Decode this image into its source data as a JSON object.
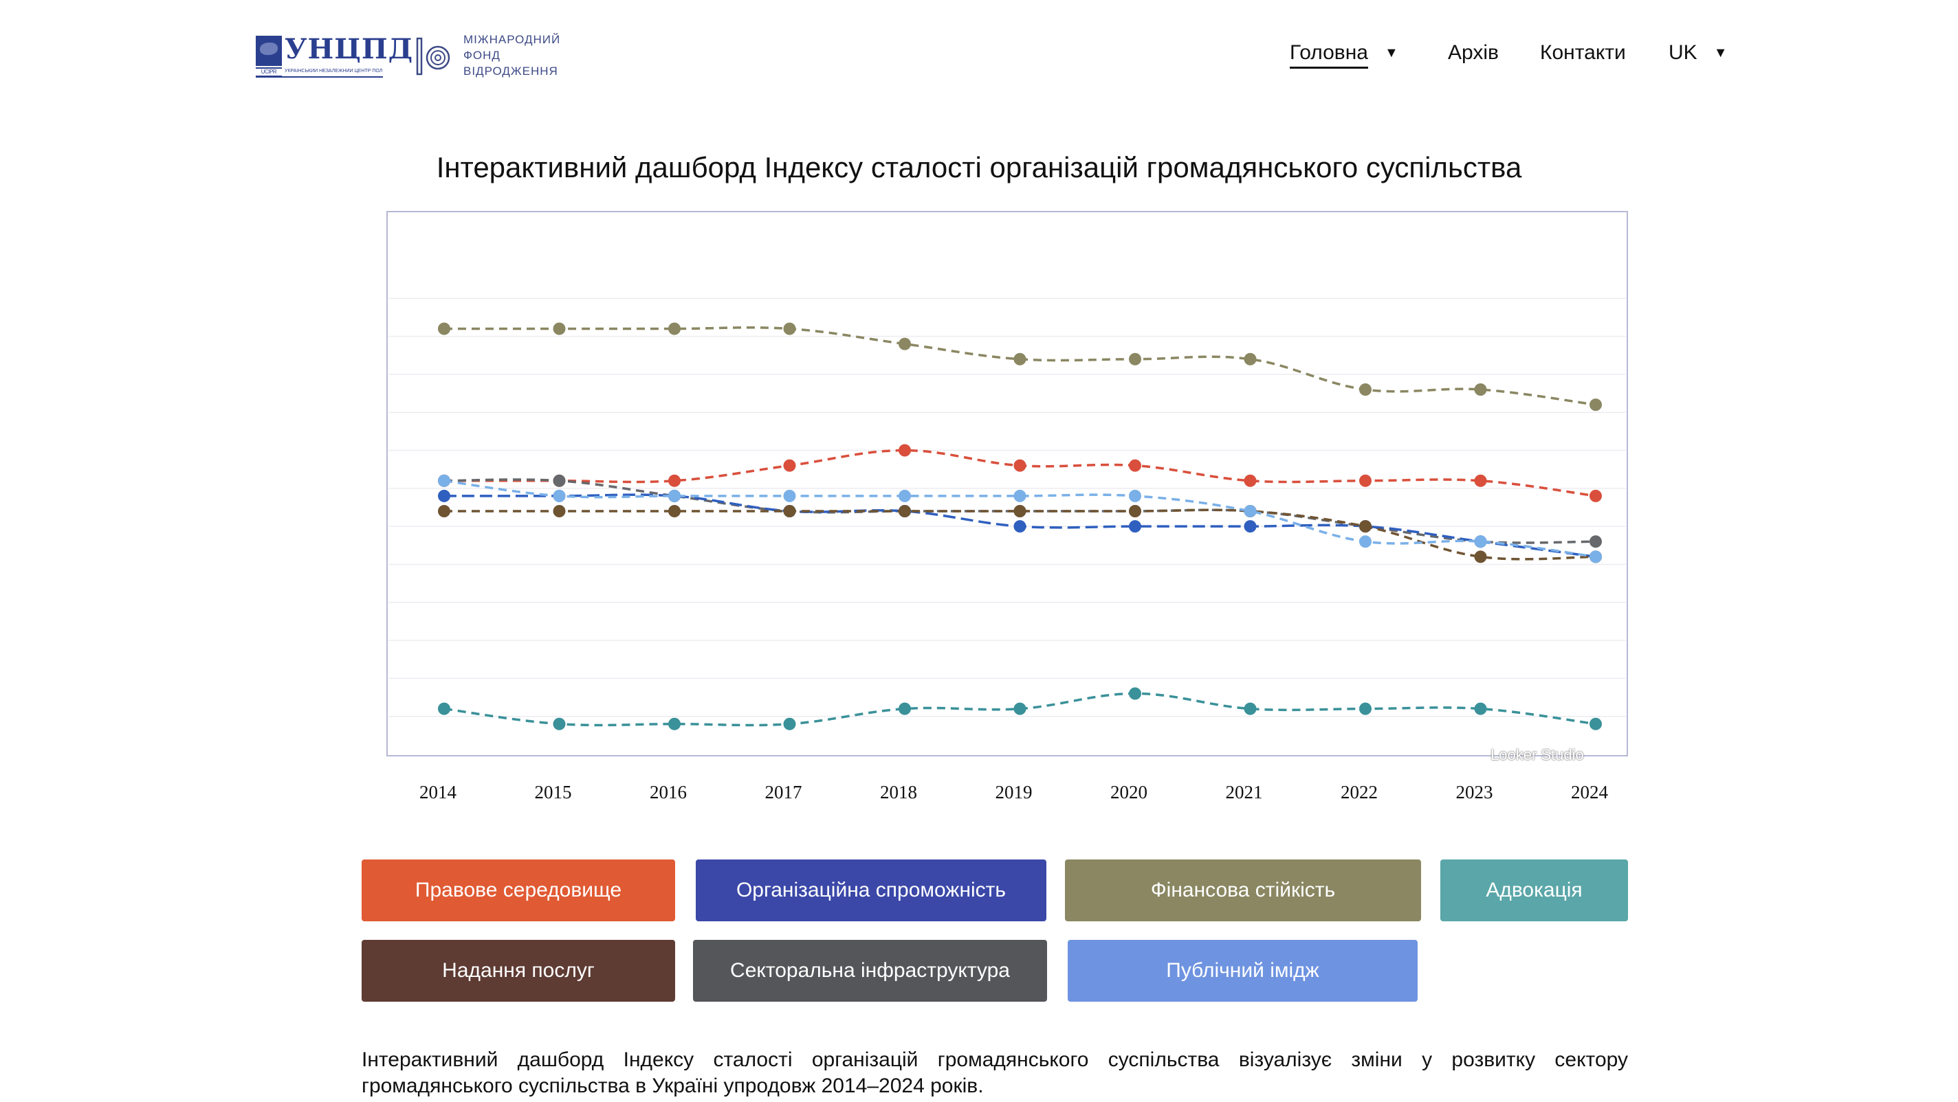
{
  "header": {
    "logo_ucipr": {
      "text": "УНЦПД",
      "flag_caption": "UCIPR",
      "tagline": "УКРАЇНСЬКИЙ НЕЗАЛЕЖНИЙ ЦЕНТР ПОЛІТИЧНИХ ДОСЛІДЖЕНЬ"
    },
    "logo_irf": {
      "line1": "МІЖНАРОДНИЙ",
      "line2": "ФОНД",
      "line3": "ВІДРОДЖЕННЯ"
    },
    "nav": [
      {
        "label": "Головна",
        "has_dropdown": true,
        "active": true
      },
      {
        "label": "Архів",
        "has_dropdown": false
      },
      {
        "label": "Контакти",
        "has_dropdown": false
      },
      {
        "label": "UK",
        "has_dropdown": true
      }
    ]
  },
  "page_title": "Інтерактивний дашборд Індексу сталості організацій громадянського суспільства",
  "watermark": "Looker Studio",
  "colors": {
    "legal": "#e05a33",
    "org": "#3b48a8",
    "financial": "#8a8762",
    "advocacy": "#5aa6a8",
    "services": "#5e3b33",
    "infrastructure": "#55565a",
    "image": "#6e93e0"
  },
  "buttons": [
    {
      "label": "Правове середовище",
      "color": "#e05a33"
    },
    {
      "label": "Організаційна спроможність",
      "color": "#3b48a8"
    },
    {
      "label": "Фінансова стійкість",
      "color": "#8a8762"
    },
    {
      "label": "Адвокація",
      "color": "#5aa6a8"
    },
    {
      "label": "Надання послуг",
      "color": "#5e3b33"
    },
    {
      "label": "Секторальна інфраструктура",
      "color": "#55565a"
    },
    {
      "label": "Публічний імідж",
      "color": "#6e93e0"
    }
  ],
  "description": "Інтерактивний дашборд Індексу сталості організацій громадянського суспільства візуалізує зміни у розвитку сектору громадянського суспільства в Україні упродовж 2014–2024 років.",
  "chart_data": {
    "type": "line",
    "title": "",
    "xlabel": "",
    "ylabel": "",
    "y_tick_labels_shown": false,
    "ylim": [
      2.1,
      5.3
    ],
    "grid": true,
    "x": [
      "2014",
      "2015",
      "2016",
      "2017",
      "2018",
      "2019",
      "2020",
      "2021",
      "2022",
      "2023",
      "2024"
    ],
    "series": [
      {
        "color": "#8a8762",
        "dash": "dashed",
        "values": [
          4.9,
          4.9,
          4.9,
          4.9,
          4.8,
          4.7,
          4.7,
          4.7,
          4.5,
          4.5,
          4.4
        ]
      },
      {
        "color": "#d94f3c",
        "dash": "dashed",
        "values": [
          3.9,
          3.9,
          3.9,
          4.0,
          4.1,
          4.0,
          4.0,
          3.9,
          3.9,
          3.9,
          3.8
        ]
      },
      {
        "color": "#66686b",
        "dash": "dashed",
        "values": [
          3.9,
          3.9,
          3.8,
          3.7,
          3.7,
          3.7,
          3.7,
          3.7,
          3.6,
          3.5,
          3.5
        ]
      },
      {
        "color": "#2f5fbf",
        "dash": "long-dash",
        "values": [
          3.8,
          3.8,
          3.8,
          3.7,
          3.7,
          3.6,
          3.6,
          3.6,
          3.6,
          3.5,
          3.4
        ]
      },
      {
        "color": "#6f5432",
        "dash": "dashed",
        "values": [
          3.7,
          3.7,
          3.7,
          3.7,
          3.7,
          3.7,
          3.7,
          3.7,
          3.6,
          3.4,
          3.4
        ]
      },
      {
        "color": "#7ab0e8",
        "dash": "dashed",
        "values": [
          3.9,
          3.8,
          3.8,
          3.8,
          3.8,
          3.8,
          3.8,
          3.7,
          3.5,
          3.5,
          3.4
        ]
      },
      {
        "color": "#3a9199",
        "dash": "dashed",
        "values": [
          2.4,
          2.3,
          2.3,
          2.3,
          2.4,
          2.4,
          2.5,
          2.4,
          2.4,
          2.4,
          2.3
        ]
      }
    ]
  }
}
